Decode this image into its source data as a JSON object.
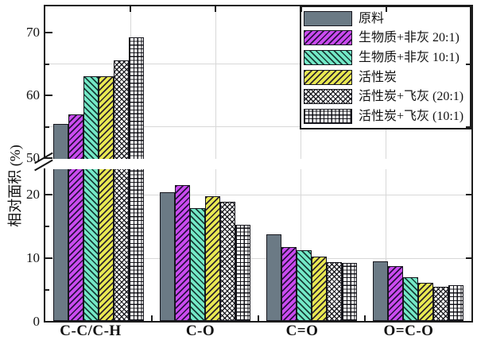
{
  "chart_data": {
    "type": "bar",
    "title": "",
    "ylabel": "相对面积 (%)",
    "xlabel": "",
    "categories": [
      "C-C/C-H",
      "C-O",
      "C=O",
      "O=C-O"
    ],
    "series": [
      {
        "name": "原料",
        "values": [
          55.5,
          20.4,
          13.7,
          9.5
        ],
        "color": "#6b7a85",
        "pattern": "solid"
      },
      {
        "name": "生物质+非灰 20:1)",
        "values": [
          57.0,
          21.5,
          11.8,
          8.7
        ],
        "color": "#cb4bf0",
        "pattern": "diag-up"
      },
      {
        "name": "生物质+非灰 10:1)",
        "values": [
          63.0,
          17.9,
          11.2,
          7.0
        ],
        "color": "#74e9c7",
        "pattern": "diag-down"
      },
      {
        "name": "活性炭",
        "values": [
          63.0,
          19.7,
          10.2,
          6.1
        ],
        "color": "#e9e952",
        "pattern": "diag-up"
      },
      {
        "name": "活性炭+飞灰 (20:1)",
        "values": [
          65.6,
          18.9,
          9.4,
          5.5
        ],
        "color": "#ffffff",
        "pattern": "cross-diag"
      },
      {
        "name": "活性炭+飞灰 (10:1)",
        "values": [
          69.3,
          15.2,
          9.2,
          5.7
        ],
        "color": "#ffffff",
        "pattern": "grid"
      }
    ],
    "axis_break": {
      "between": [
        24,
        50
      ]
    },
    "y_ticks": {
      "lower_major": [
        0,
        10,
        20
      ],
      "lower_minor": [
        5,
        15
      ],
      "upper_major": [
        50,
        60,
        70
      ],
      "upper_minor": [
        55,
        65
      ]
    },
    "gridlines": {
      "horizontal_lower": [
        10,
        20
      ],
      "horizontal_upper": [
        55,
        65
      ],
      "vertical_fractions": [
        0.2,
        0.4,
        0.6,
        0.8
      ]
    },
    "ylim_lower": [
      0,
      24
    ],
    "ylim_upper": [
      50,
      75
    ],
    "legend_position": "top-right",
    "grid": true,
    "colors": {
      "grid_line": "#d8d8d8",
      "axis": "#1c1c1c",
      "background": "#ffffff"
    }
  }
}
